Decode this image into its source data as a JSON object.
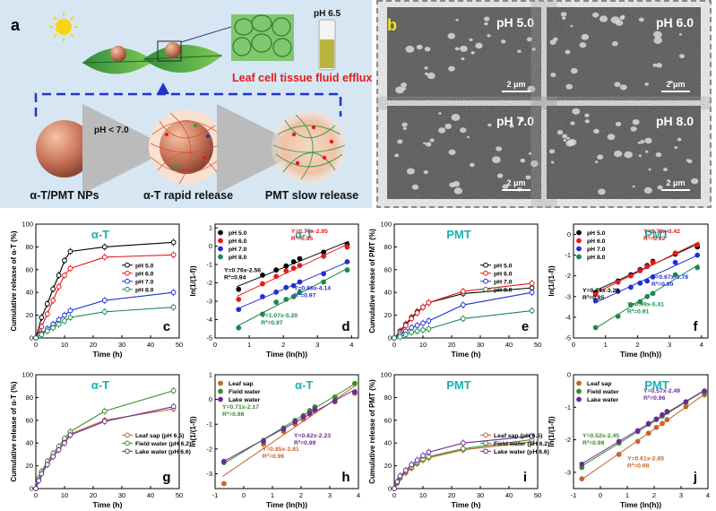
{
  "panel_a": {
    "letter": "a",
    "ph_label": "pH 6.5",
    "efflux_caption": "Leaf cell tissue fluid efflux",
    "arrow_label": "pH < 7.0",
    "step1": "α-T/PMT NPs",
    "step2": "α-T rapid release",
    "step3": "PMT slow release"
  },
  "panel_b": {
    "letter": "b",
    "scale_bar": "2 μm",
    "tiles": [
      "pH 5.0",
      "pH 6.0",
      "pH 7.0",
      "pH 8.0"
    ]
  },
  "colors": {
    "pH_series": [
      "#000000",
      "#e8191b",
      "#1f2fd9",
      "#1a8a4a"
    ],
    "env_series": [
      "#c9632d",
      "#3b8a2a",
      "#6b2a9a"
    ],
    "title_cyan": "#17b3b0",
    "equation_colors": [
      "#000000",
      "#e8191b",
      "#1f2fd9",
      "#1a8a4a"
    ]
  },
  "chart_data": [
    {
      "panel": "c",
      "type": "line",
      "title": "α-T",
      "xlabel": "Time (h)",
      "ylabel": "Cumulative release of α-T (%)",
      "xlim": [
        0,
        50
      ],
      "ylim": [
        0,
        100
      ],
      "xticks": [
        0,
        10,
        20,
        30,
        40,
        50
      ],
      "yticks": [
        0,
        20,
        40,
        60,
        80,
        100
      ],
      "x": [
        0,
        2,
        4,
        6,
        8,
        10,
        12,
        24,
        48
      ],
      "series": [
        {
          "name": "pH 5.0",
          "values": [
            0,
            18,
            30,
            43,
            55,
            68,
            76,
            80,
            84
          ]
        },
        {
          "name": "pH 6.0",
          "values": [
            0,
            10,
            21,
            33,
            45,
            55,
            61,
            71,
            73
          ]
        },
        {
          "name": "pH 7.0",
          "values": [
            0,
            4,
            8,
            12,
            16,
            20,
            24,
            33,
            40
          ]
        },
        {
          "name": "pH 8.0",
          "values": [
            0,
            3,
            6,
            9,
            12,
            15,
            18,
            23,
            27
          ]
        }
      ]
    },
    {
      "panel": "d",
      "type": "scatter",
      "title": "α-T",
      "xlabel": "Time (ln(h))",
      "ylabel": "ln(1/(1-f))",
      "xlim": [
        0,
        4.2
      ],
      "ylim": [
        -5,
        1.2
      ],
      "xticks": [
        0,
        1,
        2,
        3,
        4
      ],
      "yticks": [
        -5,
        -4,
        -3,
        -2,
        -1,
        0,
        1
      ],
      "series": [
        {
          "name": "pH 5.0",
          "x": [
            0.69,
            1.39,
            1.79,
            2.08,
            2.3,
            2.48,
            3.18,
            3.87
          ],
          "values": [
            -2.35,
            -1.58,
            -1.3,
            -1.08,
            -0.85,
            -0.68,
            -0.33,
            0.1
          ]
        },
        {
          "name": "pH 6.0",
          "x": [
            0.69,
            1.39,
            1.79,
            2.08,
            2.3,
            2.48,
            3.18,
            3.87
          ],
          "values": [
            -2.9,
            -2.05,
            -1.65,
            -1.35,
            -1.2,
            -1.05,
            -0.55,
            -0.05
          ]
        },
        {
          "name": "pH 7.0",
          "x": [
            0.69,
            1.39,
            1.79,
            2.08,
            2.3,
            2.48,
            3.18,
            3.87
          ],
          "values": [
            -3.45,
            -2.75,
            -2.5,
            -2.25,
            -2.15,
            -1.95,
            -1.5,
            -0.85
          ]
        },
        {
          "name": "pH 8.0",
          "x": [
            0.69,
            1.39,
            1.79,
            2.08,
            2.3,
            2.48,
            3.18,
            3.87
          ],
          "values": [
            -4.45,
            -3.7,
            -3.05,
            -2.9,
            -2.75,
            -2.5,
            -1.95,
            -1.3
          ]
        }
      ],
      "equations": [
        {
          "text": "Y=0.76x-2.56",
          "r2": "R²=0.94"
        },
        {
          "text": "Y=0.77x-2.95",
          "r2": "R²=0.95"
        },
        {
          "text": "Y=0.86x-4.14",
          "r2": "R²=0.97"
        },
        {
          "text": "Y=1.07x-5.20",
          "r2": "R²=0.97"
        }
      ]
    },
    {
      "panel": "e",
      "type": "line",
      "title": "PMT",
      "xlabel": "Time (h)",
      "ylabel": "Cumulative release of PMT (%)",
      "xlim": [
        0,
        50
      ],
      "ylim": [
        0,
        100
      ],
      "xticks": [
        0,
        10,
        20,
        30,
        40,
        50
      ],
      "yticks": [
        0,
        20,
        40,
        60,
        80,
        100
      ],
      "x": [
        0,
        2,
        4,
        6,
        8,
        10,
        12,
        24,
        48
      ],
      "series": [
        {
          "name": "pH 5.0",
          "values": [
            0,
            6,
            12,
            18,
            23,
            27,
            31,
            39,
            44
          ]
        },
        {
          "name": "pH 6.0",
          "values": [
            0,
            5,
            11,
            17,
            22,
            27,
            31,
            41,
            48
          ]
        },
        {
          "name": "pH 7.0",
          "values": [
            0,
            3,
            6,
            9,
            11,
            13,
            15,
            29,
            40
          ]
        },
        {
          "name": "pH 8.0",
          "values": [
            0,
            1,
            3,
            5,
            6,
            7,
            8,
            17,
            24
          ]
        }
      ]
    },
    {
      "panel": "f",
      "type": "scatter",
      "title": "PMT",
      "xlabel": "Time (ln(h))",
      "ylabel": "ln(1/(1-f))",
      "xlim": [
        0,
        4.2
      ],
      "ylim": [
        -5,
        0.5
      ],
      "xticks": [
        0,
        1,
        2,
        3,
        4
      ],
      "yticks": [
        -5,
        -4,
        -3,
        -2,
        -1,
        0
      ],
      "series": [
        {
          "name": "pH 5.0",
          "x": [
            0.69,
            1.39,
            1.79,
            2.08,
            2.3,
            2.48,
            3.18,
            3.87
          ],
          "values": [
            -2.8,
            -2.25,
            -1.95,
            -1.7,
            -1.5,
            -1.3,
            -0.95,
            -0.6
          ]
        },
        {
          "name": "pH 6.0",
          "x": [
            0.69,
            1.39,
            1.79,
            2.08,
            2.3,
            2.48,
            3.18,
            3.87
          ],
          "values": [
            -2.9,
            -2.3,
            -2.0,
            -1.75,
            -1.55,
            -1.35,
            -0.9,
            -0.5
          ]
        },
        {
          "name": "pH 7.0",
          "x": [
            0.69,
            1.39,
            1.79,
            2.08,
            2.3,
            2.48,
            3.18,
            3.87
          ],
          "values": [
            -3.2,
            -2.75,
            -2.55,
            -2.35,
            -2.25,
            -2.05,
            -1.35,
            -1.0
          ]
        },
        {
          "name": "pH 8.0",
          "x": [
            0.69,
            1.39,
            1.79,
            2.08,
            2.3,
            2.48,
            3.18,
            3.87
          ],
          "values": [
            -4.5,
            -3.95,
            -3.4,
            -3.25,
            -3.0,
            -2.85,
            -1.95,
            -1.6
          ]
        }
      ],
      "equations": [
        {
          "text": "Y=0.74x-3.29",
          "r2": "R²=0.85"
        },
        {
          "text": "Y=0.76x-3.42",
          "r2": "R²=0.92"
        },
        {
          "text": "Y=0.67x-3.78",
          "r2": "R²=0.90"
        },
        {
          "text": "Y=0.99x-5.41",
          "r2": "R²=0.91"
        }
      ]
    },
    {
      "panel": "g",
      "type": "line",
      "title": "α-T",
      "xlabel": "Time (h)",
      "ylabel": "Cumulative release of α-T (%)",
      "xlim": [
        0,
        50
      ],
      "ylim": [
        0,
        100
      ],
      "xticks": [
        0,
        10,
        20,
        30,
        40,
        50
      ],
      "yticks": [
        0,
        20,
        40,
        60,
        80,
        100
      ],
      "x": [
        0,
        1,
        2,
        4,
        6,
        8,
        10,
        12,
        24,
        48
      ],
      "series": [
        {
          "name": "Leaf sap (pH 6.5)",
          "values": [
            0,
            8,
            14,
            22,
            29,
            35,
            42,
            48,
            60,
            70
          ]
        },
        {
          "name": "Field water (pH 6.2)",
          "values": [
            0,
            9,
            15,
            24,
            31,
            37,
            44,
            50,
            68,
            86
          ]
        },
        {
          "name": "Lake water (pH 6.6)",
          "values": [
            0,
            7,
            13,
            21,
            28,
            34,
            40,
            47,
            59,
            72
          ]
        }
      ]
    },
    {
      "panel": "h",
      "type": "scatter",
      "title": "α-T",
      "xlabel": "Time (ln(h))",
      "ylabel": "ln(1/(1-f))",
      "xlim": [
        -1,
        4
      ],
      "ylim": [
        -3.6,
        1
      ],
      "xticks": [
        -1,
        0,
        1,
        2,
        3,
        4
      ],
      "yticks": [
        -3,
        -2,
        -1,
        0,
        1
      ],
      "series": [
        {
          "name": "Leaf sap",
          "x": [
            -0.69,
            0.69,
            1.39,
            1.79,
            2.08,
            2.3,
            2.48,
            3.18,
            3.87
          ],
          "values": [
            -3.4,
            -1.8,
            -1.3,
            -1.0,
            -0.8,
            -0.6,
            -0.45,
            -0.1,
            0.25
          ]
        },
        {
          "name": "Field water",
          "x": [
            -0.69,
            0.69,
            1.39,
            1.79,
            2.08,
            2.3,
            2.48,
            3.18,
            3.87
          ],
          "values": [
            -2.55,
            -1.65,
            -1.15,
            -0.85,
            -0.65,
            -0.45,
            -0.3,
            0.1,
            0.65
          ]
        },
        {
          "name": "Lake water",
          "x": [
            -0.69,
            0.69,
            1.39,
            1.79,
            2.08,
            2.3,
            2.48,
            3.18,
            3.87
          ],
          "values": [
            -2.5,
            -1.7,
            -1.2,
            -0.9,
            -0.7,
            -0.55,
            -0.4,
            -0.05,
            0.3
          ]
        }
      ],
      "equations": [
        {
          "text": "Y=0.71x-2.17",
          "r2": "R²=0.98"
        },
        {
          "text": "Y=0.62x-2.23",
          "r2": "R²=0.99"
        },
        {
          "text": "Y=0.85x-2.81",
          "r2": "R²=0.96"
        }
      ]
    },
    {
      "panel": "i",
      "type": "line",
      "title": "PMT",
      "xlabel": "Time (h)",
      "ylabel": "Cumulative release of PMT (%)",
      "xlim": [
        0,
        50
      ],
      "ylim": [
        0,
        100
      ],
      "xticks": [
        0,
        10,
        20,
        30,
        40,
        50
      ],
      "yticks": [
        0,
        20,
        40,
        60,
        80,
        100
      ],
      "x": [
        0,
        1,
        2,
        4,
        6,
        8,
        10,
        12,
        24,
        48
      ],
      "series": [
        {
          "name": "Leaf sap (pH 6.5)",
          "values": [
            0,
            5,
            9,
            14,
            18,
            22,
            25,
            27,
            34,
            41
          ]
        },
        {
          "name": "Field water (pH 6.2)",
          "values": [
            0,
            5,
            10,
            15,
            19,
            23,
            26,
            28,
            35,
            43
          ]
        },
        {
          "name": "Lake water (pH 6.6)",
          "values": [
            0,
            6,
            11,
            16,
            21,
            25,
            29,
            32,
            40,
            46
          ]
        }
      ]
    },
    {
      "panel": "j",
      "type": "scatter",
      "title": "PMT",
      "xlabel": "Time (ln(h))",
      "ylabel": "ln(1/(1-f))",
      "xlim": [
        -1,
        4
      ],
      "ylim": [
        -3.5,
        0
      ],
      "xticks": [
        -1,
        0,
        1,
        2,
        3,
        4
      ],
      "yticks": [
        -3,
        -2,
        -1,
        0
      ],
      "series": [
        {
          "name": "Leaf sap",
          "x": [
            -0.69,
            0.69,
            1.39,
            1.79,
            2.08,
            2.3,
            2.48,
            3.18,
            3.87
          ],
          "values": [
            -3.2,
            -2.45,
            -2.05,
            -1.8,
            -1.62,
            -1.5,
            -1.38,
            -0.98,
            -0.62
          ]
        },
        {
          "name": "Field water",
          "x": [
            -0.69,
            0.69,
            1.39,
            1.79,
            2.08,
            2.3,
            2.48,
            3.18,
            3.87
          ],
          "values": [
            -2.85,
            -2.1,
            -1.75,
            -1.52,
            -1.38,
            -1.27,
            -1.15,
            -0.85,
            -0.55
          ]
        },
        {
          "name": "Lake water",
          "x": [
            -0.69,
            0.69,
            1.39,
            1.79,
            2.08,
            2.3,
            2.48,
            3.18,
            3.87
          ],
          "values": [
            -2.75,
            -2.05,
            -1.72,
            -1.5,
            -1.36,
            -1.23,
            -1.13,
            -0.83,
            -0.5
          ]
        }
      ],
      "equations": [
        {
          "text": "Y=0.52x-2.45",
          "r2": "R²=0.98"
        },
        {
          "text": "Y=0.57x-2.49",
          "r2": "R²=0.96"
        },
        {
          "text": "Y=0.61x-2.85",
          "r2": "R²=0.98"
        }
      ]
    }
  ]
}
